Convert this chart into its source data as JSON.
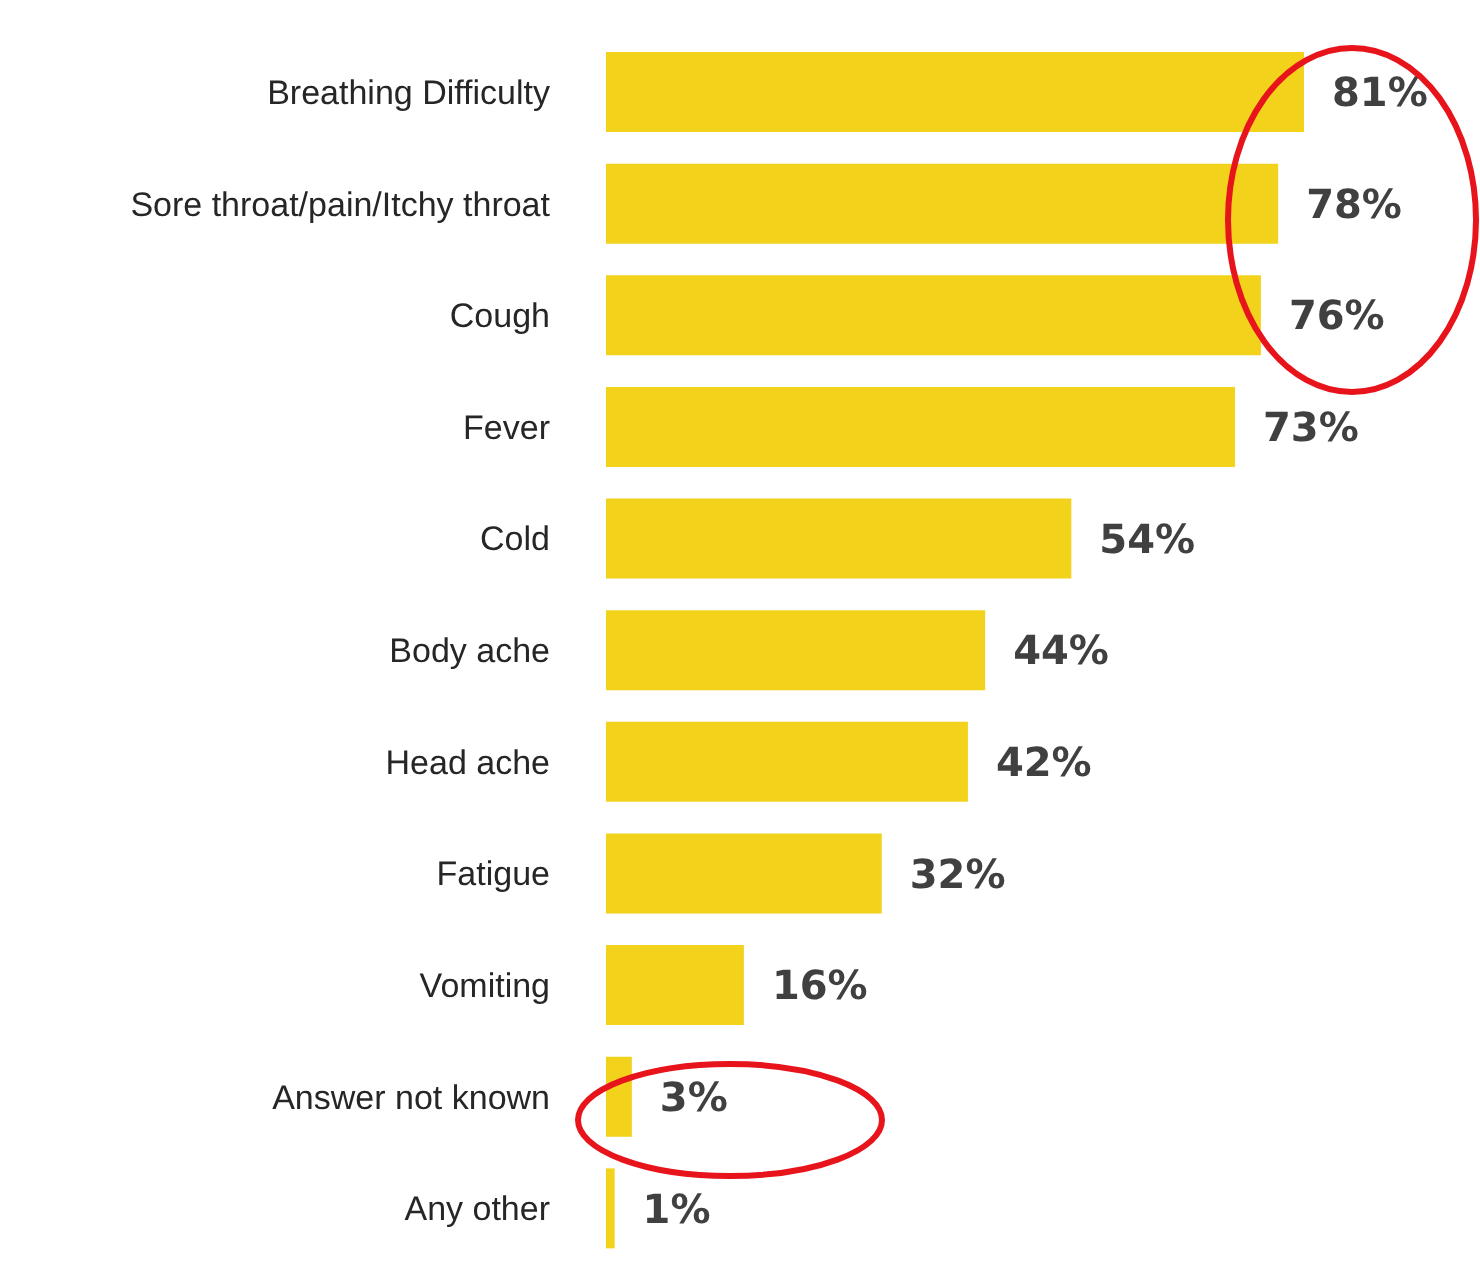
{
  "chart_data": {
    "type": "bar",
    "orientation": "horizontal",
    "categories": [
      "Breathing Difficulty",
      "Sore throat/pain/Itchy throat",
      "Cough",
      "Fever",
      "Cold",
      "Body ache",
      "Head ache",
      "Fatigue",
      "Vomiting",
      "Answer not known",
      "Any other"
    ],
    "values": [
      81,
      78,
      76,
      73,
      54,
      44,
      42,
      32,
      16,
      3,
      1
    ],
    "value_labels": [
      "81%",
      "78%",
      "76%",
      "73%",
      "54%",
      "44%",
      "42%",
      "32%",
      "16%",
      "3%",
      "1%"
    ],
    "color": "#f2d21b",
    "grid": false,
    "legend": false
  }
}
